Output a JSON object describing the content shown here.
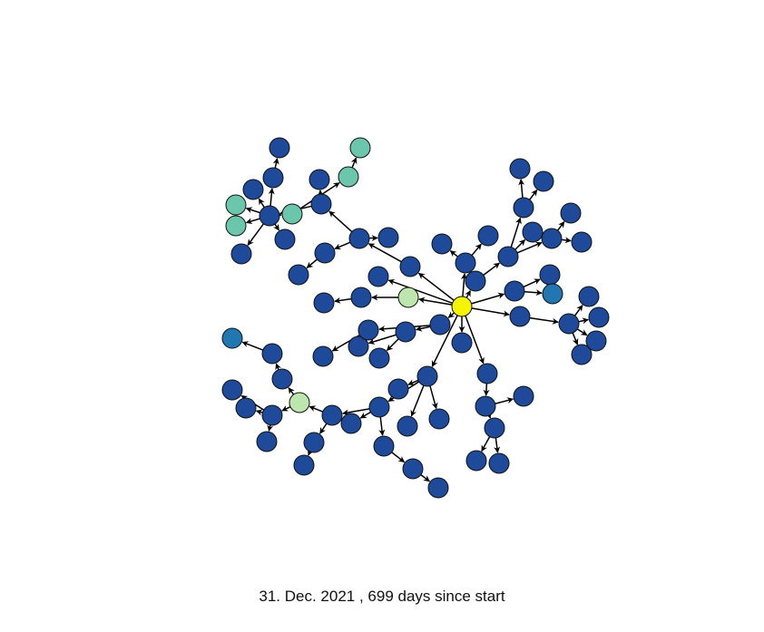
{
  "caption": "31. Dec. 2021 ,  699 days since start",
  "palette": {
    "root": "#f5f503",
    "dark_blue": "#1f4a99",
    "mid_blue": "#2277b0",
    "teal": "#6cc6ac",
    "light_green": "#bde5ae",
    "edge": "#000000",
    "node_stroke": "#111111"
  },
  "graph": {
    "directed": true,
    "root_node": 0,
    "node_colors": {
      "0": "root",
      "1": "light_green",
      "3": "light_green",
      "2": "mid_blue",
      "4": "mid_blue",
      "5": "teal",
      "6": "teal",
      "7": "teal",
      "8": "teal",
      "9": "teal"
    },
    "default_color": "dark_blue",
    "edges": [
      [
        0,
        1
      ],
      [
        1,
        10
      ],
      [
        10,
        11
      ],
      [
        1,
        12
      ],
      [
        0,
        13
      ],
      [
        13,
        14
      ],
      [
        14,
        15
      ],
      [
        14,
        16
      ],
      [
        0,
        17
      ],
      [
        17,
        18
      ],
      [
        0,
        19
      ],
      [
        19,
        20
      ],
      [
        0,
        21
      ],
      [
        0,
        22
      ],
      [
        22,
        23
      ],
      [
        22,
        24
      ],
      [
        22,
        25
      ],
      [
        25,
        26
      ],
      [
        25,
        27
      ],
      [
        25,
        28
      ],
      [
        28,
        29
      ],
      [
        28,
        30
      ],
      [
        28,
        31
      ],
      [
        25,
        32
      ],
      [
        32,
        33
      ],
      [
        33,
        34
      ],
      [
        34,
        35
      ],
      [
        33,
        36
      ],
      [
        33,
        37
      ],
      [
        33,
        38
      ],
      [
        37,
        39
      ],
      [
        37,
        40
      ],
      [
        38,
        41
      ],
      [
        38,
        42
      ],
      [
        38,
        43
      ],
      [
        43,
        3
      ],
      [
        3,
        44
      ],
      [
        44,
        45
      ],
      [
        45,
        2
      ],
      [
        3,
        46
      ],
      [
        46,
        47
      ],
      [
        46,
        48
      ],
      [
        0,
        49
      ],
      [
        0,
        50
      ],
      [
        50,
        51
      ],
      [
        51,
        52
      ],
      [
        51,
        53
      ],
      [
        52,
        54
      ],
      [
        52,
        55
      ],
      [
        0,
        56
      ],
      [
        56,
        57
      ],
      [
        57,
        58
      ],
      [
        57,
        59
      ],
      [
        58,
        60
      ],
      [
        58,
        61
      ],
      [
        60,
        62
      ],
      [
        60,
        63
      ],
      [
        0,
        64
      ],
      [
        64,
        65
      ],
      [
        64,
        4
      ],
      [
        0,
        66
      ],
      [
        66,
        67
      ],
      [
        67,
        68
      ],
      [
        67,
        69
      ],
      [
        67,
        70
      ],
      [
        0,
        71
      ],
      [
        71,
        72
      ],
      [
        72,
        73
      ],
      [
        73,
        74
      ],
      [
        74,
        75
      ],
      [
        73,
        76
      ],
      [
        76,
        77
      ],
      [
        76,
        78
      ],
      [
        73,
        79
      ],
      [
        79,
        80
      ],
      [
        79,
        81
      ],
      [
        81,
        82
      ],
      [
        82,
        83
      ],
      [
        79,
        84
      ],
      [
        84,
        8
      ],
      [
        84,
        85
      ],
      [
        84,
        9
      ],
      [
        72,
        86
      ],
      [
        86,
        6
      ],
      [
        6,
        7
      ],
      [
        72,
        87
      ],
      [
        71,
        88
      ],
      [
        88,
        89
      ],
      [
        0,
        90
      ]
    ]
  }
}
